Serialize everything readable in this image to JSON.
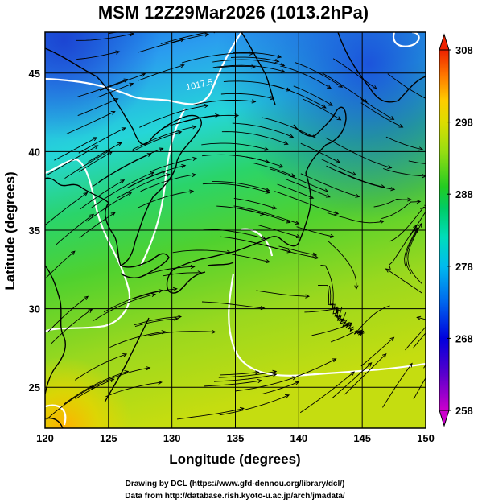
{
  "title": "MSM 12Z29Mar2026 (1013.2hPa)",
  "chart_data": {
    "type": "map",
    "xlabel": "Longitude (degrees)",
    "ylabel": "Latitude  (degrees)",
    "xlim": [
      120,
      150
    ],
    "ylim": [
      22.4,
      47.6
    ],
    "x_ticks": [
      120,
      125,
      130,
      135,
      140,
      145,
      150
    ],
    "y_ticks": [
      25,
      30,
      35,
      40,
      45
    ],
    "colorbar": {
      "min": 258,
      "max": 308,
      "ticks": [
        258,
        268,
        278,
        288,
        298,
        308
      ]
    },
    "contour_label": "1017.5",
    "grid": true
  },
  "credits": {
    "line1": "Drawing by DCL (https://www.gfd-dennou.org/library/dcl/)",
    "line2": "Data from http://database.rish.kyoto-u.ac.jp/arch/jmadata/"
  },
  "colors": {
    "colormap": [
      "#cc00cc",
      "#4400cc",
      "#0000dd",
      "#0066ee",
      "#00bbee",
      "#00ddbb",
      "#00cc66",
      "#22cc22",
      "#99dd11",
      "#dddd00",
      "#ffcc00",
      "#ff7700",
      "#ee2200"
    ],
    "land_outline": "#000000",
    "contour": "#ffffff"
  }
}
